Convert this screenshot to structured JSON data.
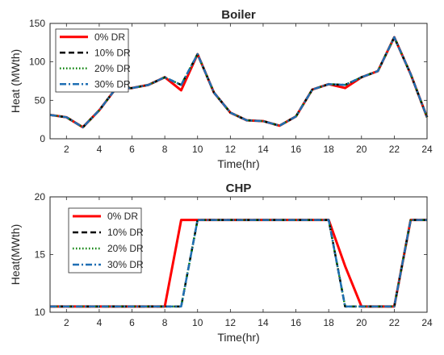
{
  "chart_data": [
    {
      "type": "line",
      "title": "Boiler",
      "xlabel": "Time(hr)",
      "ylabel": "Heat (MWth)",
      "xlim": [
        1,
        24
      ],
      "ylim": [
        0,
        150
      ],
      "xticks": [
        2,
        4,
        6,
        8,
        10,
        12,
        14,
        16,
        18,
        20,
        22,
        24
      ],
      "yticks": [
        0,
        50,
        100,
        150
      ],
      "grid": false,
      "legend_position": "top-left",
      "x": [
        1,
        2,
        3,
        4,
        5,
        6,
        7,
        8,
        9,
        10,
        11,
        12,
        13,
        14,
        15,
        16,
        17,
        18,
        19,
        20,
        21,
        22,
        23,
        24
      ],
      "series": [
        {
          "name": "0% DR",
          "color": "#ff0000",
          "style": "solid",
          "values": [
            31,
            28,
            15,
            37,
            65,
            66,
            70,
            80,
            63,
            110,
            60,
            34,
            24,
            23,
            17,
            29,
            64,
            71,
            66,
            80,
            88,
            132,
            84,
            28
          ]
        },
        {
          "name": "10% DR",
          "color": "#000000",
          "style": "dashed",
          "values": [
            31,
            28,
            15,
            37,
            65,
            66,
            70,
            80,
            70,
            110,
            60,
            34,
            24,
            23,
            17,
            29,
            64,
            71,
            70,
            80,
            88,
            132,
            84,
            28
          ]
        },
        {
          "name": "20% DR",
          "color": "#008000",
          "style": "dotted",
          "values": [
            31,
            28,
            15,
            37,
            65,
            66,
            70,
            80,
            70,
            110,
            60,
            34,
            24,
            23,
            17,
            29,
            64,
            71,
            70,
            80,
            88,
            132,
            84,
            28
          ]
        },
        {
          "name": "30% DR",
          "color": "#1f6fb4",
          "style": "dashdot",
          "values": [
            31,
            28,
            15,
            37,
            65,
            66,
            70,
            80,
            70,
            110,
            60,
            34,
            24,
            23,
            17,
            29,
            64,
            71,
            70,
            80,
            88,
            132,
            84,
            28
          ]
        }
      ]
    },
    {
      "type": "line",
      "title": "CHP",
      "xlabel": "Time(hr)",
      "ylabel": "Heat(MWth)",
      "xlim": [
        1,
        24
      ],
      "ylim": [
        10,
        20
      ],
      "xticks": [
        2,
        4,
        6,
        8,
        10,
        12,
        14,
        16,
        18,
        20,
        22,
        24
      ],
      "yticks": [
        10,
        15,
        20
      ],
      "grid": false,
      "legend_position": "top-left",
      "x": [
        1,
        2,
        3,
        4,
        5,
        6,
        7,
        8,
        9,
        10,
        11,
        12,
        13,
        14,
        15,
        16,
        17,
        18,
        19,
        20,
        21,
        22,
        23,
        24
      ],
      "series": [
        {
          "name": "0% DR",
          "color": "#ff0000",
          "style": "solid",
          "values": [
            10.5,
            10.5,
            10.5,
            10.5,
            10.5,
            10.5,
            10.5,
            10.5,
            18,
            18,
            18,
            18,
            18,
            18,
            18,
            18,
            18,
            18,
            14,
            10.5,
            10.5,
            10.5,
            18,
            18
          ]
        },
        {
          "name": "10% DR",
          "color": "#000000",
          "style": "dashed",
          "values": [
            10.5,
            10.5,
            10.5,
            10.5,
            10.5,
            10.5,
            10.5,
            10.5,
            10.5,
            18,
            18,
            18,
            18,
            18,
            18,
            18,
            18,
            18,
            10.5,
            10.5,
            10.5,
            10.5,
            18,
            18
          ]
        },
        {
          "name": "20% DR",
          "color": "#008000",
          "style": "dotted",
          "values": [
            10.5,
            10.5,
            10.5,
            10.5,
            10.5,
            10.5,
            10.5,
            10.5,
            10.5,
            18,
            18,
            18,
            18,
            18,
            18,
            18,
            18,
            18,
            10.5,
            10.5,
            10.5,
            10.5,
            18,
            18
          ]
        },
        {
          "name": "30% DR",
          "color": "#1f6fb4",
          "style": "dashdot",
          "values": [
            10.5,
            10.5,
            10.5,
            10.5,
            10.5,
            10.5,
            10.5,
            10.5,
            10.5,
            18,
            18,
            18,
            18,
            18,
            18,
            18,
            18,
            18,
            10.5,
            10.5,
            10.5,
            10.5,
            18,
            18
          ]
        }
      ]
    }
  ]
}
